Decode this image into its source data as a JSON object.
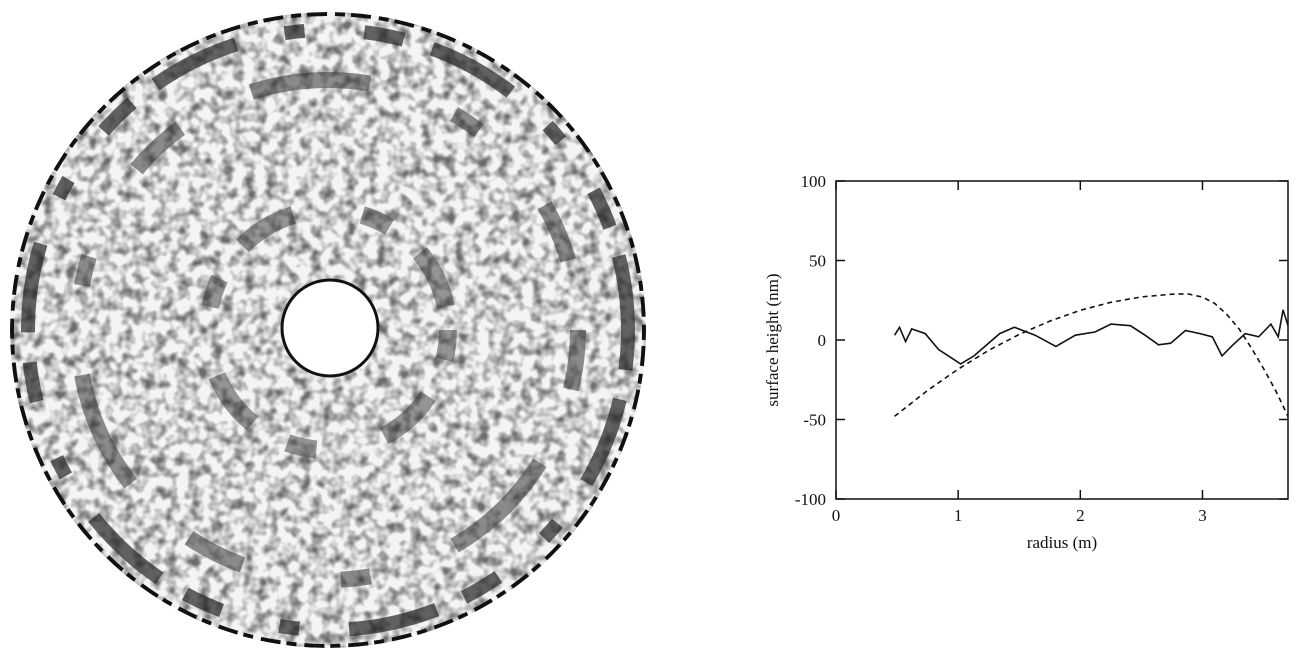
{
  "chart_data": {
    "type": "line",
    "xlabel": "radius (m)",
    "ylabel": "surface height (nm)",
    "xlim": [
      0,
      3.7
    ],
    "ylim": [
      -100,
      100
    ],
    "xticks": [
      0,
      1,
      2,
      3
    ],
    "yticks": [
      -100,
      -50,
      0,
      50,
      100
    ],
    "series": [
      {
        "color": "#111111",
        "dashed": false,
        "x": [
          0.48,
          0.52,
          0.57,
          0.62,
          0.73,
          0.84,
          1.02,
          1.13,
          1.34,
          1.46,
          1.63,
          1.8,
          1.96,
          2.12,
          2.25,
          2.41,
          2.53,
          2.64,
          2.74,
          2.86,
          2.98,
          3.08,
          3.16,
          3.25,
          3.35,
          3.46,
          3.56,
          3.62,
          3.66,
          3.7
        ],
        "values": [
          3,
          8,
          -1,
          7,
          4,
          -6,
          -15,
          -10,
          4,
          8,
          3,
          -4,
          3,
          5,
          10,
          9,
          3,
          -3,
          -2,
          6,
          4,
          2,
          -10,
          -3,
          4,
          2,
          10,
          2,
          19,
          9
        ]
      },
      {
        "color": "#111111",
        "dashed": true,
        "x": [
          0.48,
          0.75,
          1.0,
          1.25,
          1.5,
          1.75,
          2.0,
          2.25,
          2.5,
          2.75,
          2.88,
          3.0,
          3.1,
          3.2,
          3.3,
          3.4,
          3.5,
          3.6,
          3.7
        ],
        "values": [
          -48,
          -31.7,
          -18.3,
          -6.5,
          3.5,
          11.9,
          18.7,
          23.7,
          27.1,
          28.8,
          29,
          27,
          23,
          16,
          7,
          -5,
          -18,
          -32,
          -48
        ]
      }
    ]
  }
}
